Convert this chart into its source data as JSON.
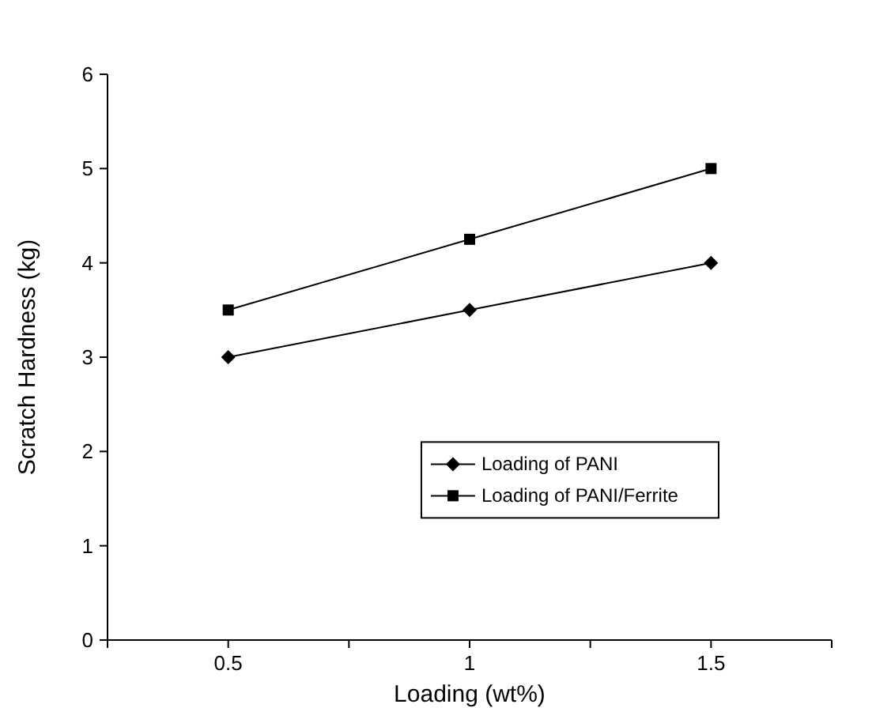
{
  "chart_data": {
    "type": "line",
    "xlabel": "Loading (wt%)",
    "ylabel": "Scratch Hardness (kg)",
    "x": [
      0.5,
      1,
      1.5
    ],
    "xlim": [
      0.25,
      1.75
    ],
    "xticks": [
      {
        "value": 0.25,
        "label": null
      },
      0.5,
      {
        "value": 0.75,
        "label": null
      },
      1,
      {
        "value": 1.25,
        "label": null
      },
      1.5,
      {
        "value": 1.75,
        "label": null
      }
    ],
    "ylim": [
      0,
      6
    ],
    "yticks": [
      0,
      1,
      2,
      3,
      4,
      5,
      6
    ],
    "grid": false,
    "legend": "bottom right",
    "series": [
      {
        "name": "Loading of PANI",
        "color": "#000000",
        "values": [
          3,
          3.5,
          4
        ],
        "marker": "diamond"
      },
      {
        "name": "Loading of PANI/Ferrite",
        "color": "#000000",
        "values": [
          3.5,
          4.25,
          5
        ],
        "marker": "square"
      }
    ]
  }
}
